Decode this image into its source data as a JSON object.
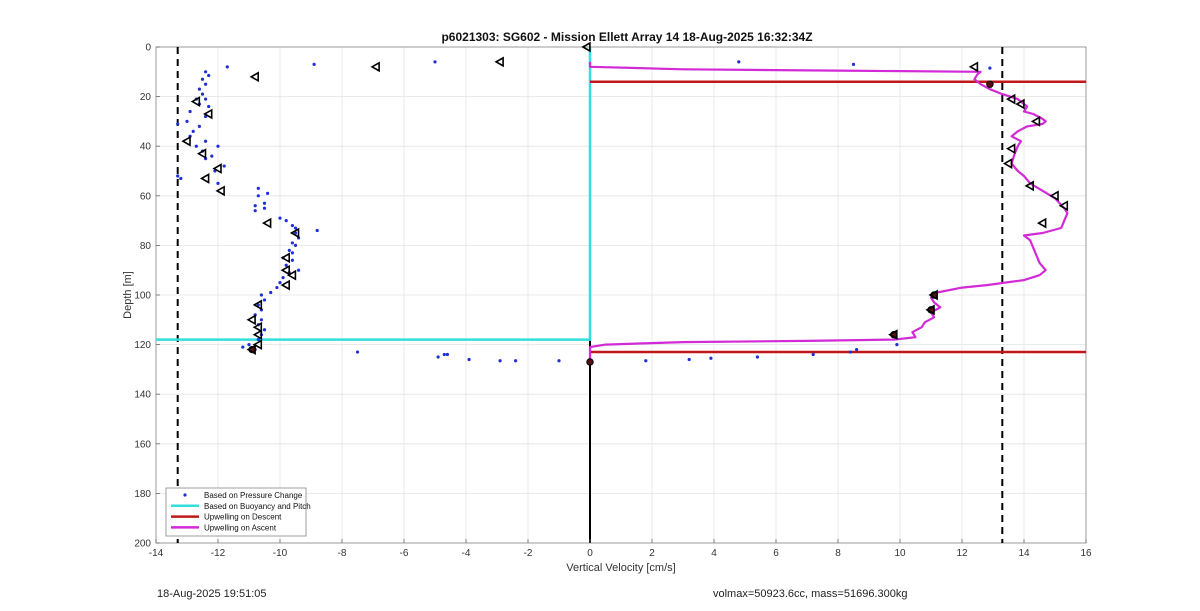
{
  "chart_data": {
    "type": "scatter",
    "title": "p6021303: SG602 - Mission Ellett Array 14 18-Aug-2025 16:32:34Z",
    "xlabel": "Vertical Velocity [cm/s]",
    "ylabel": "Depth [m]",
    "xlim": [
      -14,
      16
    ],
    "ylim": [
      0,
      200
    ],
    "y_reversed": true,
    "xticks": [
      "-14",
      "-12",
      "-10",
      "-8",
      "-6",
      "-4",
      "-2",
      "0",
      "2",
      "4",
      "6",
      "8",
      "10",
      "12",
      "14",
      "16"
    ],
    "yticks": [
      "0",
      "20",
      "40",
      "60",
      "80",
      "100",
      "120",
      "140",
      "160",
      "180",
      "200"
    ],
    "grid": true,
    "legend_position": "bottom-left",
    "legend": [
      "Based on Pressure Change",
      "Based on Buoyancy and Pitch",
      "Upwelling on Descent",
      "Upwelling on Ascent"
    ],
    "reference_lines_x": [
      -13.3,
      13.3
    ],
    "pressure_change_points": [
      [
        -11.7,
        8
      ],
      [
        -8.9,
        7
      ],
      [
        -5.0,
        6
      ],
      [
        -12.4,
        10
      ],
      [
        -12.3,
        11.5
      ],
      [
        -12.5,
        13
      ],
      [
        -12.4,
        15
      ],
      [
        -12.6,
        17
      ],
      [
        -12.5,
        19
      ],
      [
        -12.7,
        21
      ],
      [
        -12.4,
        21
      ],
      [
        -12.6,
        23
      ],
      [
        -12.3,
        24
      ],
      [
        -12.9,
        26
      ],
      [
        -12.4,
        28
      ],
      [
        -13.0,
        30
      ],
      [
        -13.3,
        31
      ],
      [
        -12.6,
        32
      ],
      [
        -12.8,
        34
      ],
      [
        -12.9,
        36
      ],
      [
        -12.4,
        38
      ],
      [
        -12.7,
        40
      ],
      [
        -12.0,
        40
      ],
      [
        -12.5,
        42
      ],
      [
        -12.2,
        44
      ],
      [
        -12.4,
        45
      ],
      [
        -11.8,
        48
      ],
      [
        -12.1,
        50
      ],
      [
        -13.3,
        52
      ],
      [
        -13.2,
        53
      ],
      [
        -12.0,
        55
      ],
      [
        -10.7,
        57
      ],
      [
        -10.4,
        59
      ],
      [
        -10.7,
        60
      ],
      [
        -10.5,
        63
      ],
      [
        -10.8,
        64
      ],
      [
        -10.5,
        65
      ],
      [
        -10.8,
        66
      ],
      [
        -10.0,
        69
      ],
      [
        -9.8,
        70
      ],
      [
        -9.6,
        72
      ],
      [
        -9.5,
        73
      ],
      [
        -8.8,
        74
      ],
      [
        -9.5,
        75
      ],
      [
        -9.4,
        77
      ],
      [
        -9.6,
        79
      ],
      [
        -9.5,
        80
      ],
      [
        -9.7,
        82
      ],
      [
        -9.6,
        83
      ],
      [
        -9.9,
        85
      ],
      [
        -9.6,
        86
      ],
      [
        -9.8,
        88
      ],
      [
        -9.4,
        90
      ],
      [
        -9.7,
        91
      ],
      [
        -9.9,
        93
      ],
      [
        -10.0,
        95
      ],
      [
        -10.1,
        97
      ],
      [
        -10.3,
        99
      ],
      [
        -10.6,
        100
      ],
      [
        -10.5,
        102
      ],
      [
        -10.7,
        104
      ],
      [
        -10.6,
        106
      ],
      [
        -10.8,
        108
      ],
      [
        -10.6,
        110
      ],
      [
        -10.7,
        112
      ],
      [
        -10.5,
        114
      ],
      [
        -10.6,
        116
      ],
      [
        -10.7,
        118
      ],
      [
        -11.0,
        120
      ],
      [
        -11.2,
        121
      ],
      [
        -10.8,
        122
      ],
      [
        -7.5,
        123
      ],
      [
        -4.9,
        125
      ],
      [
        -4.7,
        124
      ],
      [
        -4.6,
        124
      ],
      [
        -3.9,
        126
      ],
      [
        -2.9,
        126.5
      ],
      [
        -2.4,
        126.5
      ],
      [
        -1.0,
        126.5
      ],
      [
        -0.05,
        127
      ],
      [
        1.8,
        126.5
      ],
      [
        3.2,
        126
      ],
      [
        3.9,
        125.5
      ],
      [
        5.4,
        125
      ],
      [
        7.2,
        124
      ],
      [
        8.4,
        123
      ],
      [
        8.6,
        122
      ],
      [
        9.9,
        120
      ],
      [
        4.8,
        6
      ],
      [
        8.5,
        7
      ],
      [
        12.9,
        8.5
      ]
    ],
    "buoyancy_pitch_profile": [
      [
        -14.0,
        118
      ],
      [
        -0.05,
        118
      ],
      [
        0.0,
        118
      ],
      [
        0.0,
        0
      ]
    ],
    "zero_line": [
      [
        0,
        0
      ],
      [
        0,
        200
      ]
    ],
    "upwelling_descent_segments": [
      [
        [
          0,
          14
        ],
        [
          16,
          14
        ]
      ],
      [
        [
          0,
          123
        ],
        [
          16,
          123
        ]
      ]
    ],
    "upwelling_ascent_profile": [
      [
        0,
        6
      ],
      [
        0,
        8
      ],
      [
        3,
        9
      ],
      [
        8,
        9.5
      ],
      [
        12.6,
        10
      ],
      [
        12.5,
        11
      ],
      [
        12.4,
        13
      ],
      [
        12.6,
        15
      ],
      [
        12.9,
        17
      ],
      [
        13.3,
        19
      ],
      [
        13.8,
        21
      ],
      [
        14.1,
        24
      ],
      [
        14.0,
        26
      ],
      [
        14.3,
        27
      ],
      [
        14.6,
        29
      ],
      [
        14.7,
        30
      ],
      [
        14.6,
        31
      ],
      [
        14.1,
        32
      ],
      [
        13.8,
        34
      ],
      [
        13.6,
        36
      ],
      [
        13.9,
        38
      ],
      [
        13.8,
        40
      ],
      [
        13.7,
        43
      ],
      [
        13.6,
        47
      ],
      [
        13.8,
        50
      ],
      [
        14.0,
        52
      ],
      [
        14.2,
        55
      ],
      [
        14.6,
        58
      ],
      [
        15.0,
        61
      ],
      [
        15.3,
        65
      ],
      [
        15.4,
        67
      ],
      [
        15.3,
        70
      ],
      [
        15.2,
        73
      ],
      [
        14.6,
        75
      ],
      [
        14.0,
        76
      ],
      [
        14.2,
        78
      ],
      [
        14.3,
        81
      ],
      [
        14.4,
        84
      ],
      [
        14.5,
        87
      ],
      [
        14.7,
        90
      ],
      [
        14.5,
        92
      ],
      [
        14.0,
        94
      ],
      [
        12.8,
        96
      ],
      [
        12.0,
        97
      ],
      [
        11.2,
        99
      ],
      [
        11.0,
        101
      ],
      [
        11.1,
        103
      ],
      [
        11.3,
        105
      ],
      [
        11.0,
        107
      ],
      [
        11.1,
        109
      ],
      [
        10.8,
        111
      ],
      [
        10.7,
        113
      ],
      [
        10.4,
        115
      ],
      [
        10.5,
        117
      ],
      [
        9.8,
        118
      ],
      [
        7.0,
        118.5
      ],
      [
        3.0,
        119
      ],
      [
        0.5,
        120
      ],
      [
        0,
        121
      ],
      [
        0,
        127
      ]
    ],
    "triangle_markers": [
      [
        -0.1,
        0
      ],
      [
        -2.9,
        6
      ],
      [
        -6.9,
        8
      ],
      [
        -10.8,
        12
      ],
      [
        12.4,
        8
      ],
      [
        -12.7,
        22
      ],
      [
        -12.3,
        27
      ],
      [
        13.6,
        21
      ],
      [
        13.9,
        23
      ],
      [
        14.4,
        30
      ],
      [
        -13.0,
        38
      ],
      [
        -12.5,
        43
      ],
      [
        13.6,
        41
      ],
      [
        -12.0,
        49
      ],
      [
        -12.4,
        53
      ],
      [
        13.5,
        47
      ],
      [
        14.2,
        56
      ],
      [
        -11.9,
        58
      ],
      [
        15.0,
        60
      ],
      [
        15.3,
        64
      ],
      [
        -10.4,
        71
      ],
      [
        -9.5,
        75
      ],
      [
        14.6,
        71
      ],
      [
        -9.8,
        85
      ],
      [
        -9.6,
        92
      ],
      [
        -9.8,
        90
      ],
      [
        -9.8,
        96
      ],
      [
        -10.7,
        104
      ],
      [
        11.1,
        100
      ],
      [
        11.0,
        106
      ],
      [
        -10.9,
        110
      ],
      [
        -10.7,
        113
      ],
      [
        -10.7,
        116
      ],
      [
        -10.7,
        120
      ],
      [
        9.8,
        116
      ],
      [
        -10.9,
        122
      ]
    ],
    "filled_markers": [
      [
        12.9,
        15
      ],
      [
        11.1,
        100
      ],
      [
        11.0,
        106
      ],
      [
        9.8,
        116
      ],
      [
        -10.9,
        122
      ],
      [
        0.0,
        127
      ]
    ],
    "colors": {
      "pressure": "#1f2fd6",
      "buoyancy": "#33dede",
      "descent": "#c01818",
      "ascent": "#d22ad6",
      "reference": "#000000",
      "grid": "#e4e4e4"
    }
  },
  "footer": {
    "timestamp": "18-Aug-2025 19:51:05",
    "info": "volmax=50923.6cc, mass=51696.300kg"
  }
}
